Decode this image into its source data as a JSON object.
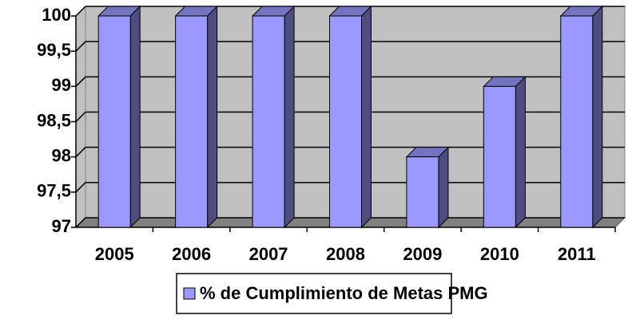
{
  "chart_data": {
    "type": "bar",
    "categories": [
      "2005",
      "2006",
      "2007",
      "2008",
      "2009",
      "2010",
      "2011"
    ],
    "series": [
      {
        "name": "% de Cumplimiento de Metas PMG",
        "color": "#9999ff",
        "values": [
          100,
          100,
          100,
          100,
          98,
          99,
          100
        ]
      }
    ],
    "ylim": [
      97,
      100
    ],
    "yticks": [
      97,
      {
        "value": 97.5,
        "label": "97,5"
      },
      98,
      {
        "value": 98.5,
        "label": "98,5"
      },
      99,
      {
        "value": 99.5,
        "label": "99,5"
      },
      100
    ],
    "grid": true,
    "legend": "bottom"
  }
}
